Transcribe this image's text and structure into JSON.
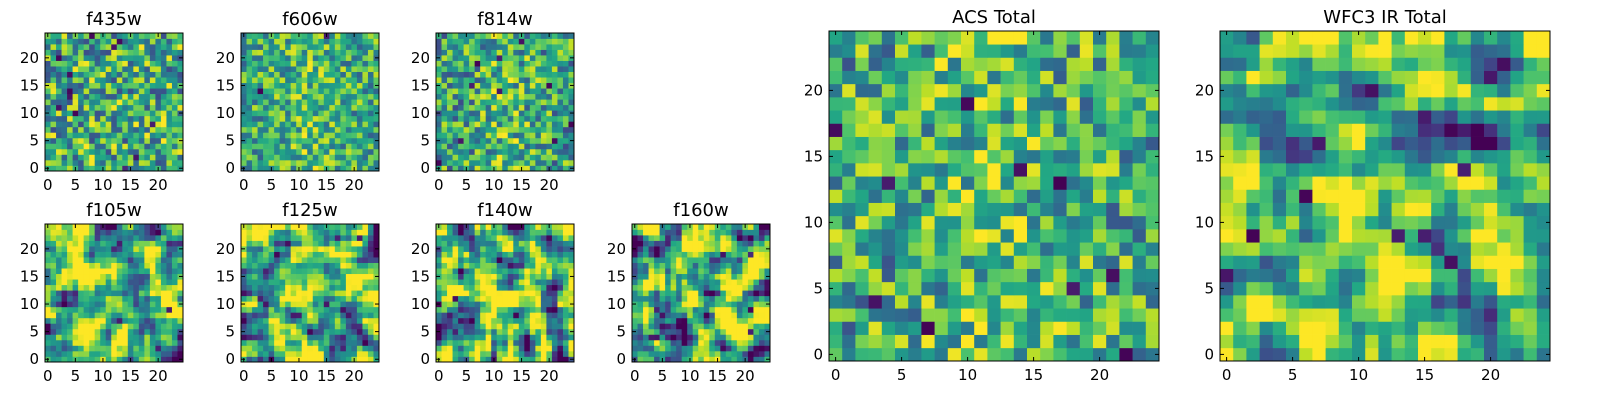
{
  "chart_data": {
    "type": "heatmap",
    "colormap": "viridis",
    "grid": false,
    "panels": [
      {
        "title": "f435w",
        "size": 25,
        "xticks": [
          "0",
          "5",
          "10",
          "15",
          "20"
        ],
        "yticks": [
          "0",
          "5",
          "10",
          "15",
          "20"
        ],
        "seed": 11,
        "smooth": 0,
        "mean": 0.6,
        "spread": 0.22,
        "center": 0.0,
        "lows": 12
      },
      {
        "title": "f606w",
        "size": 25,
        "xticks": [
          "0",
          "5",
          "10",
          "15",
          "20"
        ],
        "yticks": [
          "0",
          "5",
          "10",
          "15",
          "20"
        ],
        "seed": 23,
        "smooth": 0,
        "mean": 0.6,
        "spread": 0.18,
        "center": 0.1,
        "lows": 2
      },
      {
        "title": "f814w",
        "size": 25,
        "xticks": [
          "0",
          "5",
          "10",
          "15",
          "20"
        ],
        "yticks": [
          "0",
          "5",
          "10",
          "15",
          "20"
        ],
        "seed": 37,
        "smooth": 0,
        "mean": 0.58,
        "spread": 0.2,
        "center": 0.12,
        "lows": 10
      },
      {
        "title": "f105w",
        "size": 25,
        "xticks": [
          "0",
          "5",
          "10",
          "15",
          "20"
        ],
        "yticks": [
          "0",
          "5",
          "10",
          "15",
          "20"
        ],
        "seed": 41,
        "smooth": 1,
        "mean": 0.63,
        "spread": 0.3,
        "center": 0.08,
        "lows": 4
      },
      {
        "title": "f125w",
        "size": 25,
        "xticks": [
          "0",
          "5",
          "10",
          "15",
          "20"
        ],
        "yticks": [
          "0",
          "5",
          "10",
          "15",
          "20"
        ],
        "seed": 53,
        "smooth": 1,
        "mean": 0.63,
        "spread": 0.3,
        "center": 0.06,
        "lows": 5
      },
      {
        "title": "f140w",
        "size": 25,
        "xticks": [
          "0",
          "5",
          "10",
          "15",
          "20"
        ],
        "yticks": [
          "0",
          "5",
          "10",
          "15",
          "20"
        ],
        "seed": 67,
        "smooth": 1,
        "mean": 0.62,
        "spread": 0.32,
        "center": 0.06,
        "lows": 5
      },
      {
        "title": "f160w",
        "size": 25,
        "xticks": [
          "0",
          "5",
          "10",
          "15",
          "20"
        ],
        "yticks": [
          "0",
          "5",
          "10",
          "15",
          "20"
        ],
        "seed": 79,
        "smooth": 1,
        "mean": 0.6,
        "spread": 0.34,
        "center": 0.1,
        "lows": 8
      },
      {
        "title": "ACS Total",
        "size": 25,
        "xticks": [
          "0",
          "5",
          "10",
          "15",
          "20"
        ],
        "yticks": [
          "0",
          "5",
          "10",
          "15",
          "20"
        ],
        "seed": 83,
        "smooth": 0,
        "mean": 0.62,
        "spread": 0.2,
        "center": 0.12,
        "lows": 10
      },
      {
        "title": "WFC3 IR Total",
        "size": 25,
        "xticks": [
          "0",
          "5",
          "10",
          "15",
          "20"
        ],
        "yticks": [
          "0",
          "5",
          "10",
          "15",
          "20"
        ],
        "seed": 97,
        "smooth": 1,
        "mean": 0.62,
        "spread": 0.26,
        "center": 0.16,
        "lows": 8
      }
    ]
  }
}
